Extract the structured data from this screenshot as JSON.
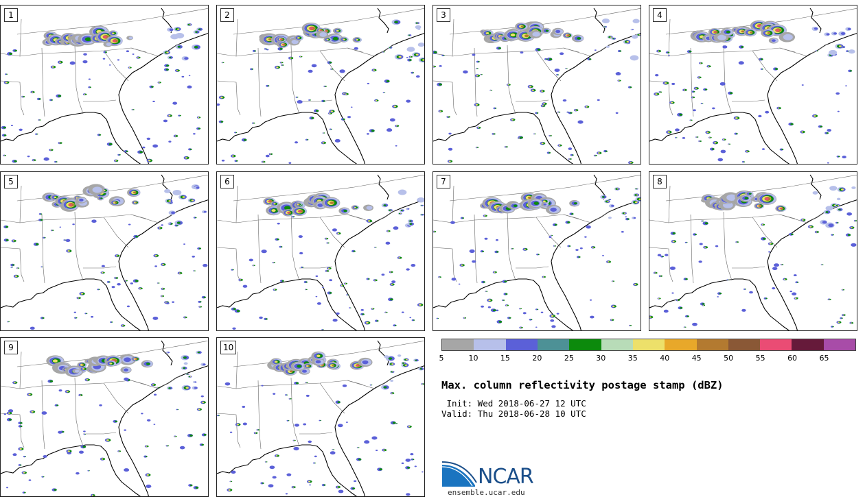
{
  "panels": [
    {
      "label": "1"
    },
    {
      "label": "2"
    },
    {
      "label": "3"
    },
    {
      "label": "4"
    },
    {
      "label": "5"
    },
    {
      "label": "6"
    },
    {
      "label": "7"
    },
    {
      "label": "8"
    },
    {
      "label": "9"
    },
    {
      "label": "10"
    }
  ],
  "colorbar": {
    "colors": [
      "#a6a6a6",
      "#b7c0ea",
      "#5b60d8",
      "#4d9196",
      "#0c8a0c",
      "#b8dcb8",
      "#ede06a",
      "#e8a82a",
      "#b37a30",
      "#8a5836",
      "#ea4c74",
      "#661a3a",
      "#a84ca8"
    ],
    "ticks": [
      "5",
      "10",
      "15",
      "20",
      "25",
      "30",
      "35",
      "40",
      "45",
      "50",
      "55",
      "60",
      "65"
    ]
  },
  "title": "Max. column reflectivity postage stamp (dBZ)",
  "init_text": " Init: Wed 2018-06-27 12 UTC",
  "valid_text": "Valid: Thu 2018-06-28 10 UTC",
  "logo": {
    "name": "NCAR",
    "url": "ensemble.ucar.edu"
  }
}
